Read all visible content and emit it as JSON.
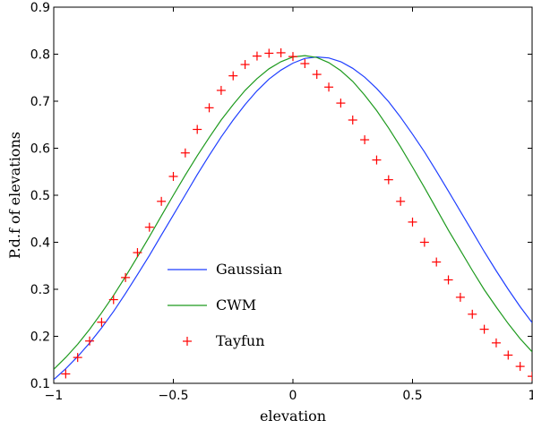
{
  "chart_data": {
    "type": "line",
    "title": "",
    "xlabel": "elevation",
    "ylabel": "P.d.f of elevations",
    "xlim": [
      -1,
      1
    ],
    "ylim": [
      0.1,
      0.9
    ],
    "xticks": [
      -1,
      -0.5,
      0,
      0.5,
      1
    ],
    "xtick_labels": [
      "−1",
      "−0.5",
      "0",
      "0.5",
      "1"
    ],
    "yticks": [
      0.1,
      0.2,
      0.3,
      0.4,
      0.5,
      0.6,
      0.7,
      0.8,
      0.9
    ],
    "ytick_labels": [
      "0.1",
      "0.2",
      "0.3",
      "0.4",
      "0.5",
      "0.6",
      "0.7",
      "0.8",
      "0.9"
    ],
    "grid": false,
    "legend_position": "center-left",
    "series": [
      {
        "name": "Gaussian",
        "style": "line",
        "color": "#1f3fff",
        "x": [
          -1.0,
          -0.95,
          -0.9,
          -0.85,
          -0.8,
          -0.75,
          -0.7,
          -0.65,
          -0.6,
          -0.55,
          -0.5,
          -0.45,
          -0.4,
          -0.35,
          -0.3,
          -0.25,
          -0.2,
          -0.15,
          -0.1,
          -0.05,
          0.0,
          0.05,
          0.1,
          0.15,
          0.2,
          0.25,
          0.3,
          0.35,
          0.4,
          0.45,
          0.5,
          0.55,
          0.6,
          0.65,
          0.7,
          0.75,
          0.8,
          0.85,
          0.9,
          0.95,
          1.0
        ],
        "y": [
          0.108,
          0.131,
          0.157,
          0.186,
          0.218,
          0.253,
          0.291,
          0.331,
          0.372,
          0.415,
          0.458,
          0.501,
          0.544,
          0.585,
          0.624,
          0.66,
          0.693,
          0.722,
          0.747,
          0.766,
          0.781,
          0.791,
          0.794,
          0.792,
          0.784,
          0.77,
          0.751,
          0.727,
          0.699,
          0.666,
          0.63,
          0.592,
          0.551,
          0.509,
          0.466,
          0.423,
          0.38,
          0.339,
          0.3,
          0.263,
          0.229
        ]
      },
      {
        "name": "CWM",
        "style": "line",
        "color": "#1e9a1e",
        "x": [
          -1.0,
          -0.95,
          -0.9,
          -0.85,
          -0.8,
          -0.75,
          -0.7,
          -0.65,
          -0.6,
          -0.55,
          -0.5,
          -0.45,
          -0.4,
          -0.35,
          -0.3,
          -0.25,
          -0.2,
          -0.15,
          -0.1,
          -0.05,
          0.0,
          0.05,
          0.1,
          0.15,
          0.2,
          0.25,
          0.3,
          0.35,
          0.4,
          0.45,
          0.5,
          0.55,
          0.6,
          0.65,
          0.7,
          0.75,
          0.8,
          0.85,
          0.9,
          0.95,
          1.0
        ],
        "y": [
          0.13,
          0.155,
          0.183,
          0.215,
          0.25,
          0.287,
          0.327,
          0.369,
          0.412,
          0.456,
          0.5,
          0.543,
          0.584,
          0.623,
          0.66,
          0.693,
          0.723,
          0.748,
          0.769,
          0.784,
          0.794,
          0.797,
          0.793,
          0.782,
          0.765,
          0.742,
          0.713,
          0.68,
          0.643,
          0.603,
          0.56,
          0.516,
          0.471,
          0.426,
          0.383,
          0.34,
          0.299,
          0.262,
          0.227,
          0.195,
          0.167
        ]
      },
      {
        "name": "Tayfun",
        "style": "marker",
        "marker": "+",
        "color": "#ff0000",
        "x": [
          -0.95,
          -0.9,
          -0.85,
          -0.8,
          -0.75,
          -0.7,
          -0.65,
          -0.6,
          -0.55,
          -0.5,
          -0.45,
          -0.4,
          -0.35,
          -0.3,
          -0.25,
          -0.2,
          -0.15,
          -0.1,
          -0.05,
          0.0,
          0.05,
          0.1,
          0.15,
          0.2,
          0.25,
          0.3,
          0.35,
          0.4,
          0.45,
          0.5,
          0.55,
          0.6,
          0.65,
          0.7,
          0.75,
          0.8,
          0.85,
          0.9,
          0.95,
          1.0
        ],
        "y": [
          0.12,
          0.155,
          0.19,
          0.23,
          0.278,
          0.325,
          0.378,
          0.432,
          0.487,
          0.54,
          0.59,
          0.64,
          0.686,
          0.723,
          0.754,
          0.778,
          0.796,
          0.802,
          0.803,
          0.795,
          0.78,
          0.757,
          0.73,
          0.696,
          0.66,
          0.618,
          0.575,
          0.533,
          0.487,
          0.443,
          0.4,
          0.358,
          0.32,
          0.283,
          0.247,
          0.215,
          0.186,
          0.16,
          0.136,
          0.115
        ]
      }
    ]
  }
}
